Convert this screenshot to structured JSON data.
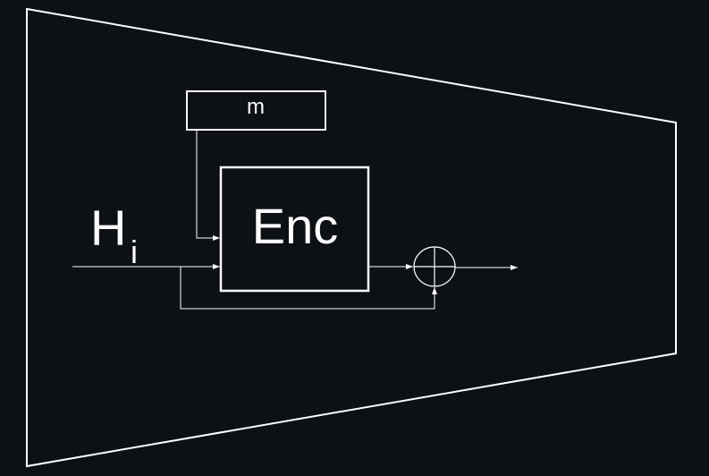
{
  "diagram": {
    "message_label": "m",
    "encoder_label": "Enc",
    "input_label_main": "H",
    "input_label_sub": "i",
    "xor_symbol": "xor-operator-icon",
    "colors": {
      "background": "#0d1014",
      "stroke": "#ffffff"
    }
  }
}
